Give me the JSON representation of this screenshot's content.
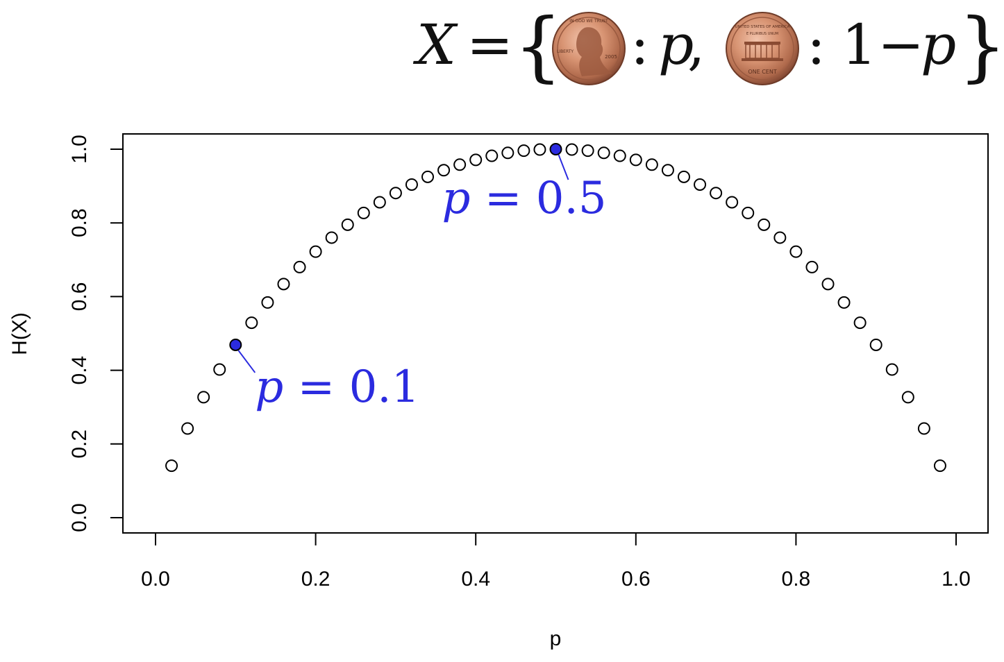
{
  "formula": {
    "lhs": "X",
    "equals": "=",
    "open_brace": "{",
    "sep1": ":",
    "p1": "p",
    "comma": ",",
    "sep2": ":",
    "one": "1",
    "minus": "−",
    "p2": "p",
    "close_brace": "}",
    "coin_heads": {
      "top_text": "IN GOD WE TRUST",
      "left_text": "LIBERTY",
      "year": "2005"
    },
    "coin_tails": {
      "top_text": "UNITED STATES OF AMERICA",
      "motto": "E PLURIBUS UNUM",
      "bottom_text": "ONE CENT"
    }
  },
  "colors": {
    "highlight": "#2b2bdf",
    "marker_stroke": "#000000",
    "axis": "#000000"
  },
  "chart_data": {
    "type": "scatter",
    "xlabel": "p",
    "ylabel": "H(X)",
    "xlim": [
      0.0,
      1.0
    ],
    "ylim": [
      0.0,
      1.0
    ],
    "x_ticks": [
      "0.0",
      "0.2",
      "0.4",
      "0.6",
      "0.8",
      "1.0"
    ],
    "y_ticks": [
      "0.0",
      "0.2",
      "0.4",
      "0.6",
      "0.8",
      "1.0"
    ],
    "grid": false,
    "marker": "open-circle",
    "series": [
      {
        "x": [
          0.02,
          0.04,
          0.06,
          0.08,
          0.1,
          0.12,
          0.14,
          0.16,
          0.18,
          0.2,
          0.22,
          0.24,
          0.26,
          0.28,
          0.3,
          0.32,
          0.34,
          0.36,
          0.38,
          0.4,
          0.42,
          0.44,
          0.46,
          0.48,
          0.5,
          0.52,
          0.54,
          0.56,
          0.58,
          0.6,
          0.62,
          0.64,
          0.66,
          0.68,
          0.7,
          0.72,
          0.74,
          0.76,
          0.78,
          0.8,
          0.82,
          0.84,
          0.86,
          0.88,
          0.9,
          0.92,
          0.94,
          0.96,
          0.98
        ],
        "y": [
          0.141,
          0.242,
          0.327,
          0.402,
          0.469,
          0.529,
          0.584,
          0.634,
          0.68,
          0.722,
          0.76,
          0.795,
          0.827,
          0.856,
          0.881,
          0.904,
          0.925,
          0.943,
          0.958,
          0.971,
          0.982,
          0.99,
          0.996,
          0.999,
          1.0,
          0.999,
          0.996,
          0.99,
          0.982,
          0.971,
          0.958,
          0.943,
          0.925,
          0.904,
          0.881,
          0.856,
          0.827,
          0.795,
          0.76,
          0.722,
          0.68,
          0.634,
          0.584,
          0.529,
          0.469,
          0.402,
          0.327,
          0.242,
          0.141
        ]
      }
    ],
    "highlighted": [
      {
        "x": 0.1,
        "y": 0.469,
        "label_var": "p",
        "label_eq": "=",
        "label_val": "0.1"
      },
      {
        "x": 0.5,
        "y": 1.0,
        "label_var": "p",
        "label_eq": "=",
        "label_val": "0.5"
      }
    ]
  }
}
